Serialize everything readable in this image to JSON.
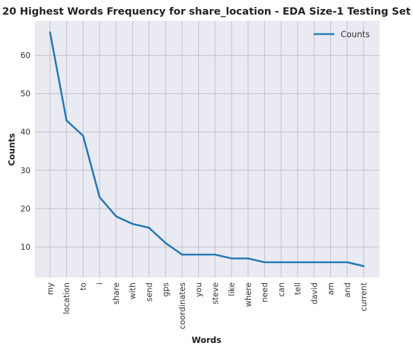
{
  "chart_data": {
    "type": "line",
    "title": "20 Highest Words Frequency for share_location - EDA Size-1 Testing Set",
    "xlabel": "Words",
    "ylabel": "Counts",
    "categories": [
      "my",
      "location",
      "to",
      "i",
      "share",
      "with",
      "send",
      "gps",
      "coordinates",
      "you",
      "steve",
      "like",
      "where",
      "need",
      "can",
      "tell",
      "david",
      "am",
      "and",
      "current"
    ],
    "series": [
      {
        "name": "Counts",
        "values": [
          66,
          43,
          39,
          23,
          18,
          16,
          15,
          11,
          8,
          8,
          8,
          7,
          7,
          6,
          6,
          6,
          6,
          6,
          6,
          5
        ]
      }
    ],
    "ylim": [
      2.0,
      69.0
    ],
    "yticks": [
      10,
      20,
      30,
      40,
      50,
      60
    ],
    "grid": true,
    "legend_position": "top-right",
    "colors": {
      "line": "#1f77b4",
      "background": "#eaeaf2",
      "grid": "#c0c0c8"
    }
  }
}
